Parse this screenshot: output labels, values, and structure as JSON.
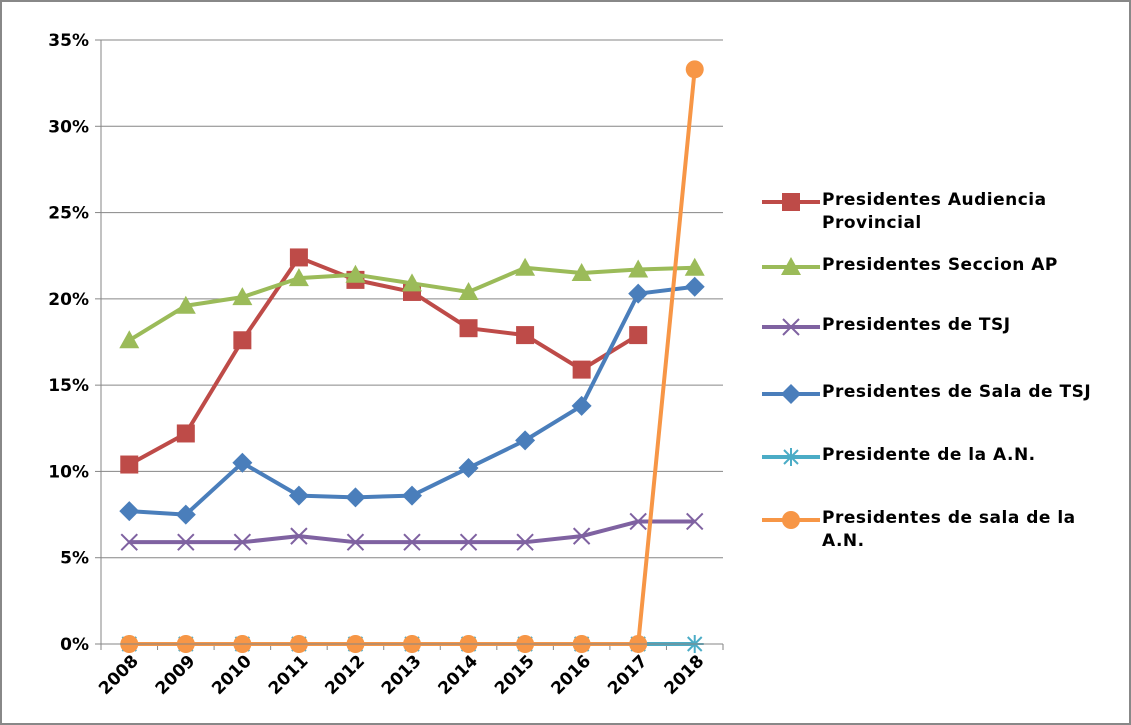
{
  "chart_data": {
    "type": "line",
    "categories": [
      "2008",
      "2009",
      "2010",
      "2011",
      "2012",
      "2013",
      "2014",
      "2015",
      "2016",
      "2017",
      "2018"
    ],
    "ylim": [
      0,
      35
    ],
    "yticks": [
      {
        "value": 0,
        "label": "0%"
      },
      {
        "value": 5,
        "label": "5%"
      },
      {
        "value": 10,
        "label": "10%"
      },
      {
        "value": 15,
        "label": "15%"
      },
      {
        "value": 20,
        "label": "20%"
      },
      {
        "value": 25,
        "label": "25%"
      },
      {
        "value": 30,
        "label": "30%"
      },
      {
        "value": 35,
        "label": "35%"
      }
    ],
    "grid": true,
    "legend": "right",
    "series": [
      {
        "name": "Presidentes Audiencia Provincial",
        "color": "#be4b48",
        "marker": "square",
        "values": [
          10.4,
          12.2,
          17.6,
          22.4,
          21.1,
          20.4,
          18.3,
          17.9,
          15.9,
          17.9,
          null
        ]
      },
      {
        "name": "Presidentes Seccion AP",
        "color": "#9bbb59",
        "marker": "triangle",
        "values": [
          17.6,
          19.6,
          20.1,
          21.2,
          21.4,
          20.9,
          20.4,
          21.8,
          21.5,
          21.7,
          21.8
        ]
      },
      {
        "name": "Presidentes de TSJ",
        "color": "#7f62a1",
        "marker": "x",
        "values": [
          5.9,
          5.9,
          5.9,
          6.25,
          5.9,
          5.9,
          5.9,
          5.9,
          6.25,
          7.1,
          7.1
        ]
      },
      {
        "name": "Presidentes de Sala de TSJ",
        "color": "#4a7ebb",
        "marker": "diamond",
        "values": [
          7.7,
          7.5,
          10.5,
          8.6,
          8.5,
          8.6,
          10.2,
          11.8,
          13.8,
          20.3,
          20.7
        ]
      },
      {
        "name": "Presidente de la A.N.",
        "color": "#4bacc6",
        "marker": "asterisk",
        "values": [
          0,
          0,
          0,
          0,
          0,
          0,
          0,
          0,
          0,
          0,
          0
        ]
      },
      {
        "name": "Presidentes de sala de la A.N.",
        "color": "#f79646",
        "marker": "circle",
        "values": [
          0,
          0,
          0,
          0,
          0,
          0,
          0,
          0,
          0,
          0,
          33.3
        ]
      }
    ]
  }
}
